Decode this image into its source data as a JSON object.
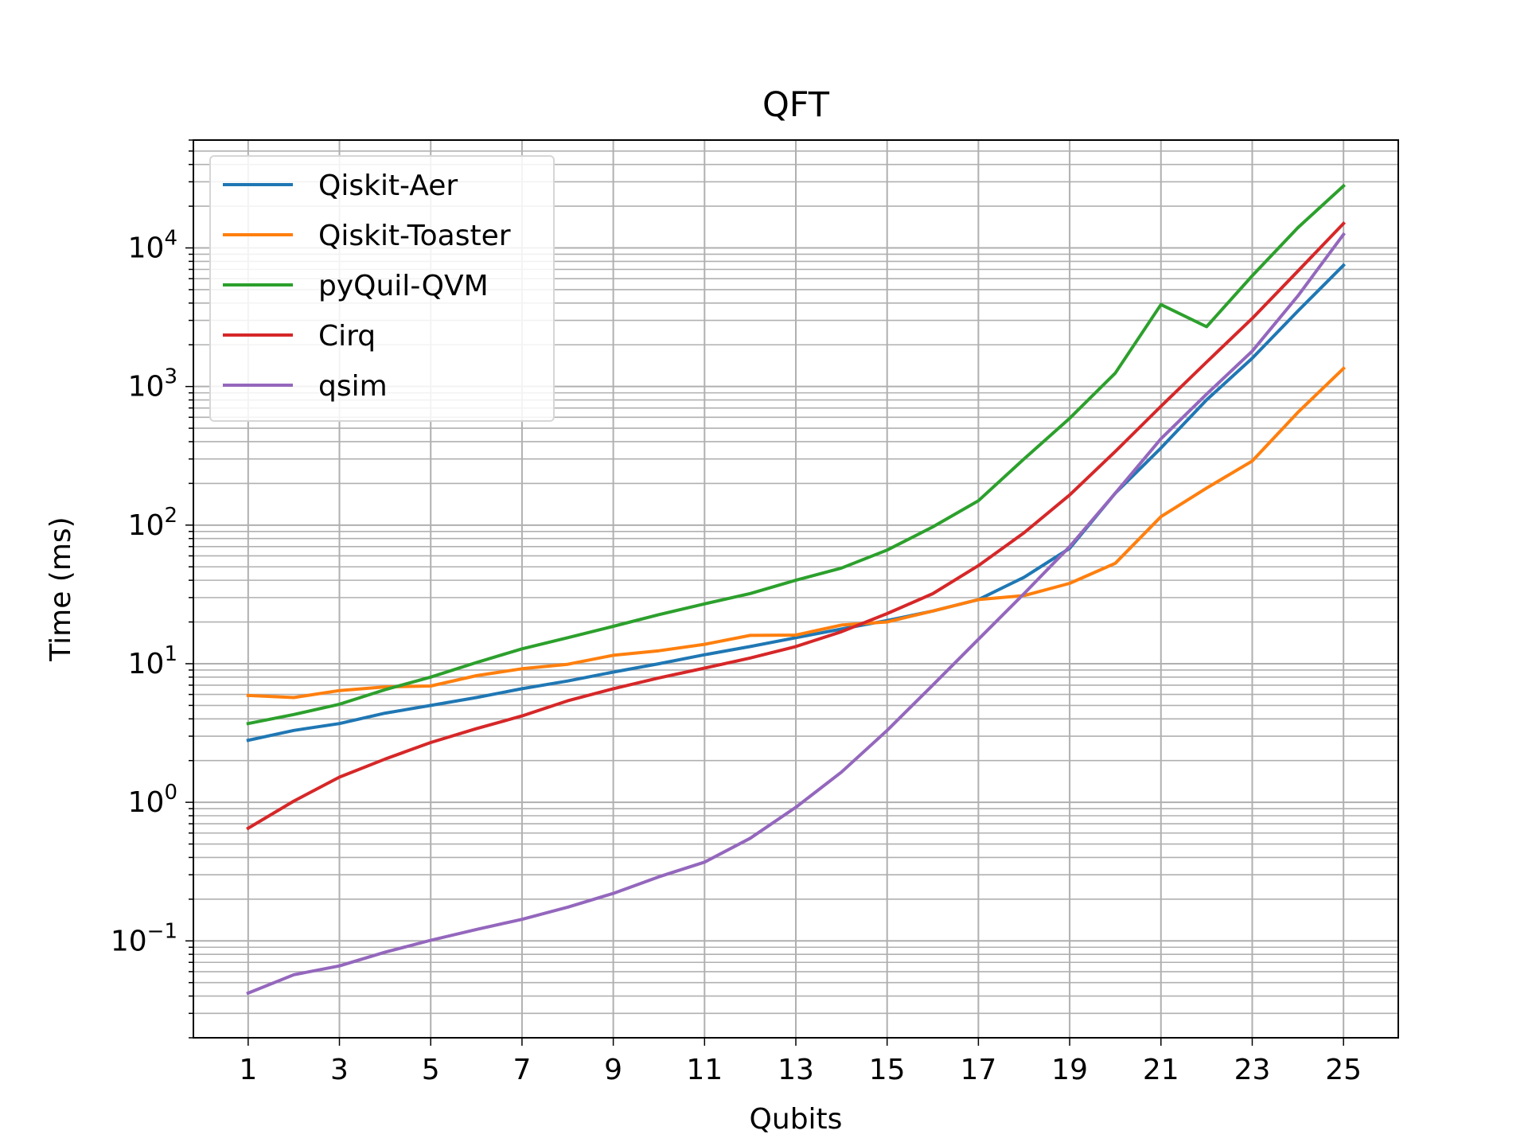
{
  "chart_data": {
    "type": "line",
    "title": "QFT",
    "xlabel": "Qubits",
    "ylabel": "Time (ms)",
    "yscale": "log",
    "ylim": [
      0.02,
      60000
    ],
    "xlim": [
      -0.2,
      26.2
    ],
    "grid": true,
    "legend_position": "top-left",
    "x": [
      1,
      2,
      3,
      4,
      5,
      6,
      7,
      8,
      9,
      10,
      11,
      12,
      13,
      14,
      15,
      16,
      17,
      18,
      19,
      20,
      21,
      22,
      23,
      24,
      25
    ],
    "x_ticks": [
      1,
      3,
      5,
      7,
      9,
      11,
      13,
      15,
      17,
      19,
      21,
      23,
      25
    ],
    "x_tick_labels": [
      "1",
      "3",
      "5",
      "7",
      "9",
      "11",
      "13",
      "15",
      "17",
      "19",
      "21",
      "23",
      "25"
    ],
    "y_ticks": [
      0.1,
      1,
      10,
      100,
      1000,
      10000
    ],
    "y_tick_labels": [
      {
        "base": "10",
        "exp": "−1"
      },
      {
        "base": "10",
        "exp": "0"
      },
      {
        "base": "10",
        "exp": "1"
      },
      {
        "base": "10",
        "exp": "2"
      },
      {
        "base": "10",
        "exp": "3"
      },
      {
        "base": "10",
        "exp": "4"
      }
    ],
    "series": [
      {
        "name": "Qiskit-Aer",
        "color": "#1f77b4",
        "values": [
          2.8,
          3.3,
          3.7,
          4.4,
          5.0,
          5.7,
          6.6,
          7.5,
          8.7,
          10.0,
          11.6,
          13.3,
          15.4,
          17.8,
          20.5,
          24,
          29,
          42,
          68,
          170,
          360,
          800,
          1600,
          3500,
          7500
        ]
      },
      {
        "name": "Qiskit-Toaster",
        "color": "#ff7f0e",
        "values": [
          5.9,
          5.7,
          6.4,
          6.8,
          6.9,
          8.2,
          9.2,
          9.9,
          11.5,
          12.4,
          13.8,
          16.0,
          16.1,
          19.0,
          20.0,
          24,
          29,
          31,
          38,
          53,
          115,
          185,
          290,
          650,
          1350
        ]
      },
      {
        "name": "pyQuil-QVM",
        "color": "#2ca02c",
        "values": [
          3.7,
          4.3,
          5.1,
          6.5,
          8.0,
          10.2,
          12.8,
          15.4,
          18.6,
          22.6,
          27.0,
          32.1,
          40.0,
          49.0,
          66.0,
          97,
          150,
          300,
          590,
          1250,
          3900,
          2700,
          6300,
          14000,
          28000
        ]
      },
      {
        "name": "Cirq",
        "color": "#d62728",
        "values": [
          0.65,
          1.02,
          1.52,
          2.05,
          2.7,
          3.4,
          4.2,
          5.4,
          6.6,
          7.9,
          9.3,
          11.0,
          13.3,
          17.0,
          23.0,
          32,
          51,
          88,
          165,
          340,
          720,
          1500,
          3100,
          6800,
          15000
        ]
      },
      {
        "name": "qsim",
        "color": "#9467bd",
        "values": [
          0.042,
          0.057,
          0.066,
          0.083,
          0.101,
          0.121,
          0.143,
          0.175,
          0.22,
          0.29,
          0.37,
          0.55,
          0.92,
          1.65,
          3.3,
          7.0,
          15.0,
          32.0,
          70,
          170,
          420,
          880,
          1800,
          4500,
          12500
        ]
      }
    ]
  }
}
